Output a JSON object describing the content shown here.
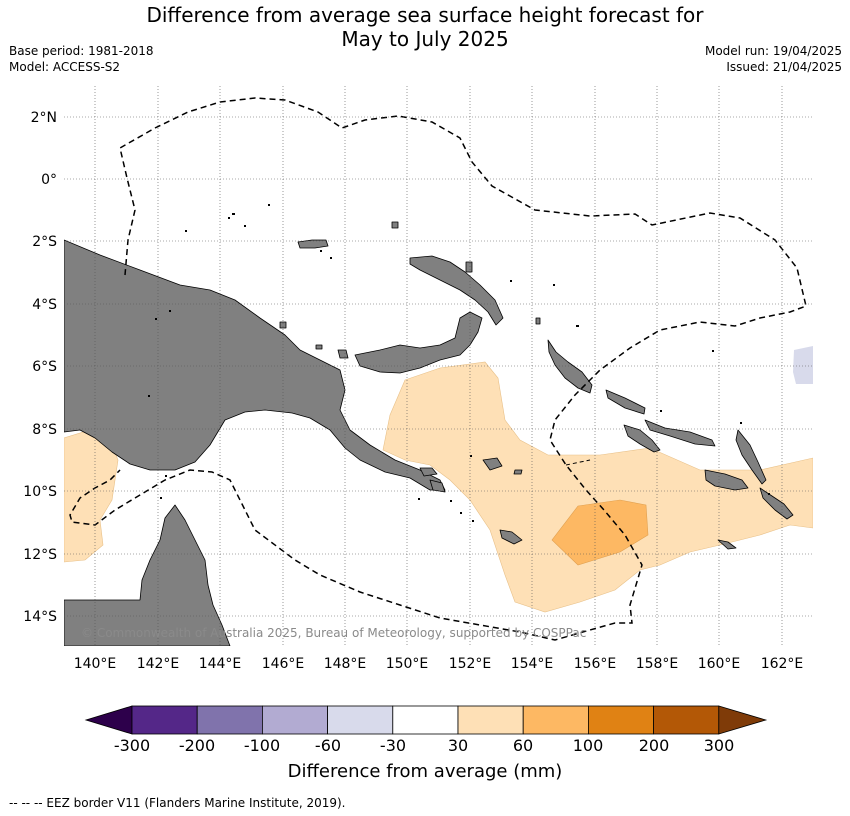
{
  "title_line1": "Difference from average sea surface height forecast for",
  "title_line2": "May to July 2025",
  "base_period": "Base period: 1981-2018",
  "model": "Model: ACCESS-S2",
  "model_run": "Model run: 19/04/2025",
  "issued": "Issued: 21/04/2025",
  "copyright": "© Commonwealth of Australia 2025, Bureau of Meteorology, supported by COSPPac",
  "lat_labels": [
    "2°N",
    "0°",
    "2°S",
    "4°S",
    "6°S",
    "8°S",
    "10°S",
    "12°S",
    "14°S"
  ],
  "lon_labels": [
    "140°E",
    "142°E",
    "144°E",
    "146°E",
    "148°E",
    "150°E",
    "152°E",
    "154°E",
    "156°E",
    "158°E",
    "160°E",
    "162°E"
  ],
  "colorbar": {
    "title": "Difference from average (mm)",
    "ticks": [
      "-300",
      "-200",
      "-100",
      "-60",
      "-30",
      "30",
      "60",
      "100",
      "200",
      "300"
    ],
    "colors": [
      "#2d004b",
      "#542788",
      "#8073ac",
      "#b2abd2",
      "#d8daeb",
      "#ffffff",
      "#fee0b6",
      "#fdb863",
      "#e08214",
      "#b35806",
      "#7f3b08"
    ]
  },
  "footer": "--  --  -- EEZ border V11 (Flanders Marine Institute, 2019).",
  "colors": {
    "land": "#808080",
    "anom_30_60": "#fee0b6",
    "anom_60_100": "#fdb863",
    "anom_neg_30_60": "#d8daeb"
  }
}
